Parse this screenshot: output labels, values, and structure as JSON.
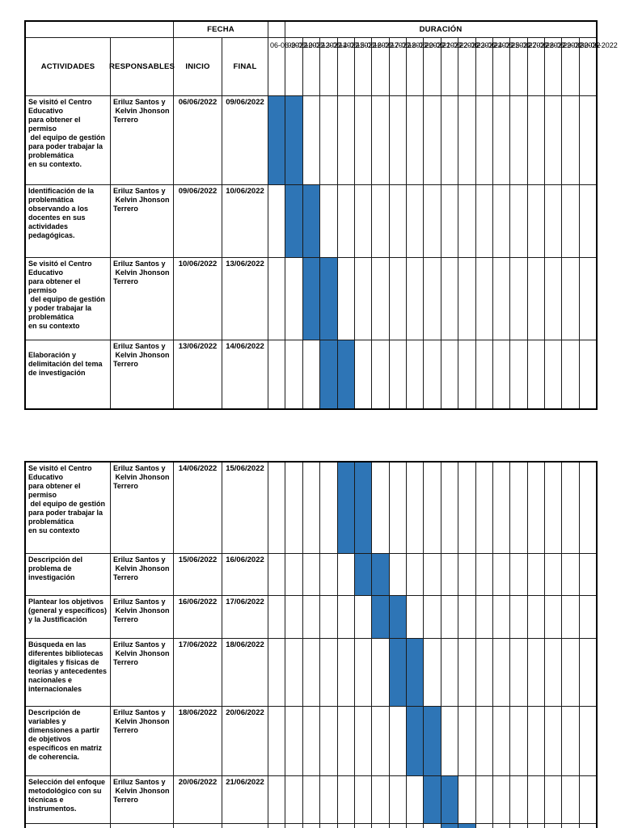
{
  "document": {
    "header": {
      "fecha": "FECHA",
      "duracion": "DURACIÓN",
      "actividades": "ACTIVIDADES",
      "responsables": "RESPONSABLES",
      "inicio": "INICIO",
      "final": "FINAL"
    },
    "bar_color": "#2e75b6",
    "timeline_dates": [
      "06-06-2022",
      "09-06-2022",
      "10-06-2022",
      "13-06-2022",
      "14-06-2022",
      "15-06-2022",
      "16-06-2022",
      "17-06-2022",
      "18-06-2022",
      "20-06-2022",
      "21-06-2022",
      "22-06-2022",
      "23-06-2022",
      "24-06-2022",
      "25-06-2022",
      "27-06-2022",
      "28-06-2022",
      "29-06-2022",
      "30-06-2022"
    ],
    "tables": [
      {
        "rows": [
          {
            "activity": "Se visitó el Centro\nEducativo\npara obtener el\npermiso\n del equipo de gestión\npara poder trabajar la\nproblemática\nen su contexto.",
            "responsible": "Eriluz Santos y\n Kelvin Jhonson\nTerrero",
            "inicio": "06/06/2022",
            "final": "09/06/2022",
            "bar_columns": [
              0,
              1
            ]
          },
          {
            "activity": "Identificación de la\nproblemática\nobservando a los\ndocentes en sus\nactividades\npedagógicas.",
            "responsible": "Eriluz Santos y\n Kelvin Jhonson\nTerrero",
            "inicio": "09/06/2022",
            "final": "10/06/2022",
            "bar_columns": [
              1,
              2
            ]
          },
          {
            "activity": "Se visitó el Centro\nEducativo\npara obtener el\npermiso\n del equipo de gestión\ny poder trabajar la\nproblemática\nen su contexto",
            "responsible": "Eriluz Santos y\n Kelvin Jhonson\nTerrero",
            "inicio": "10/06/2022",
            "final": "13/06/2022",
            "bar_columns": [
              2,
              3
            ]
          },
          {
            "activity": "\nElaboración y\ndelimitación del tema\nde investigación",
            "responsible": "Eriluz Santos y\n Kelvin Jhonson\nTerrero",
            "inicio": "13/06/2022",
            "final": "14/06/2022",
            "bar_columns": [
              3,
              4
            ]
          }
        ]
      },
      {
        "rows": [
          {
            "activity": "Se visitó el Centro\nEducativo\npara obtener el\npermiso\n del equipo de gestión\npara poder trabajar la\nproblemática\nen su contexto",
            "responsible": "Eriluz Santos y\n Kelvin Jhonson\nTerrero",
            "inicio": "14/06/2022",
            "final": "15/06/2022",
            "bar_columns": [
              4,
              5
            ]
          },
          {
            "activity": "Descripción del\nproblema de\ninvestigación",
            "responsible": "Eriluz Santos y\n Kelvin Jhonson\nTerrero",
            "inicio": "15/06/2022",
            "final": "16/06/2022",
            "bar_columns": [
              5,
              6
            ]
          },
          {
            "activity": "Plantear los objetivos\n(general y específicos)\ny la Justificación",
            "responsible": "Eriluz Santos y\n Kelvin Jhonson\nTerrero",
            "inicio": "16/06/2022",
            "final": "17/06/2022",
            "bar_columns": [
              6,
              7
            ]
          },
          {
            "activity": "Búsqueda en las\ndiferentes bibliotecas\ndigitales y físicas de\nteorías y antecedentes\nnacionales e\ninternacionales",
            "responsible": "Eriluz Santos y\n Kelvin Jhonson\nTerrero",
            "inicio": "17/06/2022",
            "final": "18/06/2022",
            "bar_columns": [
              7,
              8
            ]
          },
          {
            "activity": "Descripción de\nvariables y\ndimensiones a partir\nde objetivos\nespecíficos en matriz\nde coherencia.",
            "responsible": "Eriluz Santos y\n Kelvin Jhonson\nTerrero",
            "inicio": "18/06/2022",
            "final": "20/06/2022",
            "bar_columns": [
              8,
              9
            ]
          },
          {
            "activity": "Selección del enfoque\nmetodológico con su\ntécnicas e\ninstrumentos.",
            "responsible": "Eriluz Santos y\n Kelvin Jhonson\nTerrero",
            "inicio": "20/06/2022",
            "final": "21/06/2022",
            "bar_columns": [
              9,
              10
            ]
          },
          {
            "activity": "",
            "responsible": "",
            "inicio": "",
            "final": "",
            "bar_columns": [
              10,
              11
            ]
          }
        ]
      }
    ]
  },
  "chart_data": {
    "type": "table",
    "columns": [
      "ACTIVIDADES",
      "RESPONSABLES",
      "INICIO",
      "FINAL",
      "DURACIÓN"
    ],
    "timeline": [
      "06-06-2022",
      "09-06-2022",
      "10-06-2022",
      "13-06-2022",
      "14-06-2022",
      "15-06-2022",
      "16-06-2022",
      "17-06-2022",
      "18-06-2022",
      "20-06-2022",
      "21-06-2022",
      "22-06-2022",
      "23-06-2022",
      "24-06-2022",
      "25-06-2022",
      "27-06-2022",
      "28-06-2022",
      "29-06-2022",
      "30-06-2022"
    ],
    "tasks": [
      {
        "activity": "Se visitó el Centro Educativo para obtener el permiso del equipo de gestión para poder trabajar la problemática en su contexto.",
        "responsible": "Eriluz Santos y Kelvin Jhonson Terrero",
        "inicio": "06/06/2022",
        "final": "09/06/2022"
      },
      {
        "activity": "Identificación de la problemática observando a los docentes en sus actividades pedagógicas.",
        "responsible": "Eriluz Santos y Kelvin Jhonson Terrero",
        "inicio": "09/06/2022",
        "final": "10/06/2022"
      },
      {
        "activity": "Se visitó el Centro Educativo para obtener el permiso del equipo de gestión y poder trabajar la problemática en su contexto",
        "responsible": "Eriluz Santos y Kelvin Jhonson Terrero",
        "inicio": "10/06/2022",
        "final": "13/06/2022"
      },
      {
        "activity": "Elaboración y delimitación del tema de investigación",
        "responsible": "Eriluz Santos y Kelvin Jhonson Terrero",
        "inicio": "13/06/2022",
        "final": "14/06/2022"
      },
      {
        "activity": "Se visitó el Centro Educativo para obtener el permiso del equipo de gestión para poder trabajar la problemática en su contexto",
        "responsible": "Eriluz Santos y Kelvin Jhonson Terrero",
        "inicio": "14/06/2022",
        "final": "15/06/2022"
      },
      {
        "activity": "Descripción del problema de investigación",
        "responsible": "Eriluz Santos y Kelvin Jhonson Terrero",
        "inicio": "15/06/2022",
        "final": "16/06/2022"
      },
      {
        "activity": "Plantear los objetivos (general y específicos) y la Justificación",
        "responsible": "Eriluz Santos y Kelvin Jhonson Terrero",
        "inicio": "16/06/2022",
        "final": "17/06/2022"
      },
      {
        "activity": "Búsqueda en las diferentes bibliotecas digitales y físicas de teorías y antecedentes nacionales e internacionales",
        "responsible": "Eriluz Santos y Kelvin Jhonson Terrero",
        "inicio": "17/06/2022",
        "final": "18/06/2022"
      },
      {
        "activity": "Descripción de variables y dimensiones a partir de objetivos específicos en matriz de coherencia.",
        "responsible": "Eriluz Santos y Kelvin Jhonson Terrero",
        "inicio": "18/06/2022",
        "final": "20/06/2022"
      },
      {
        "activity": "Selección del enfoque metodológico con su técnicas e instrumentos.",
        "responsible": "Eriluz Santos y Kelvin Jhonson Terrero",
        "inicio": "20/06/2022",
        "final": "21/06/2022"
      }
    ]
  }
}
